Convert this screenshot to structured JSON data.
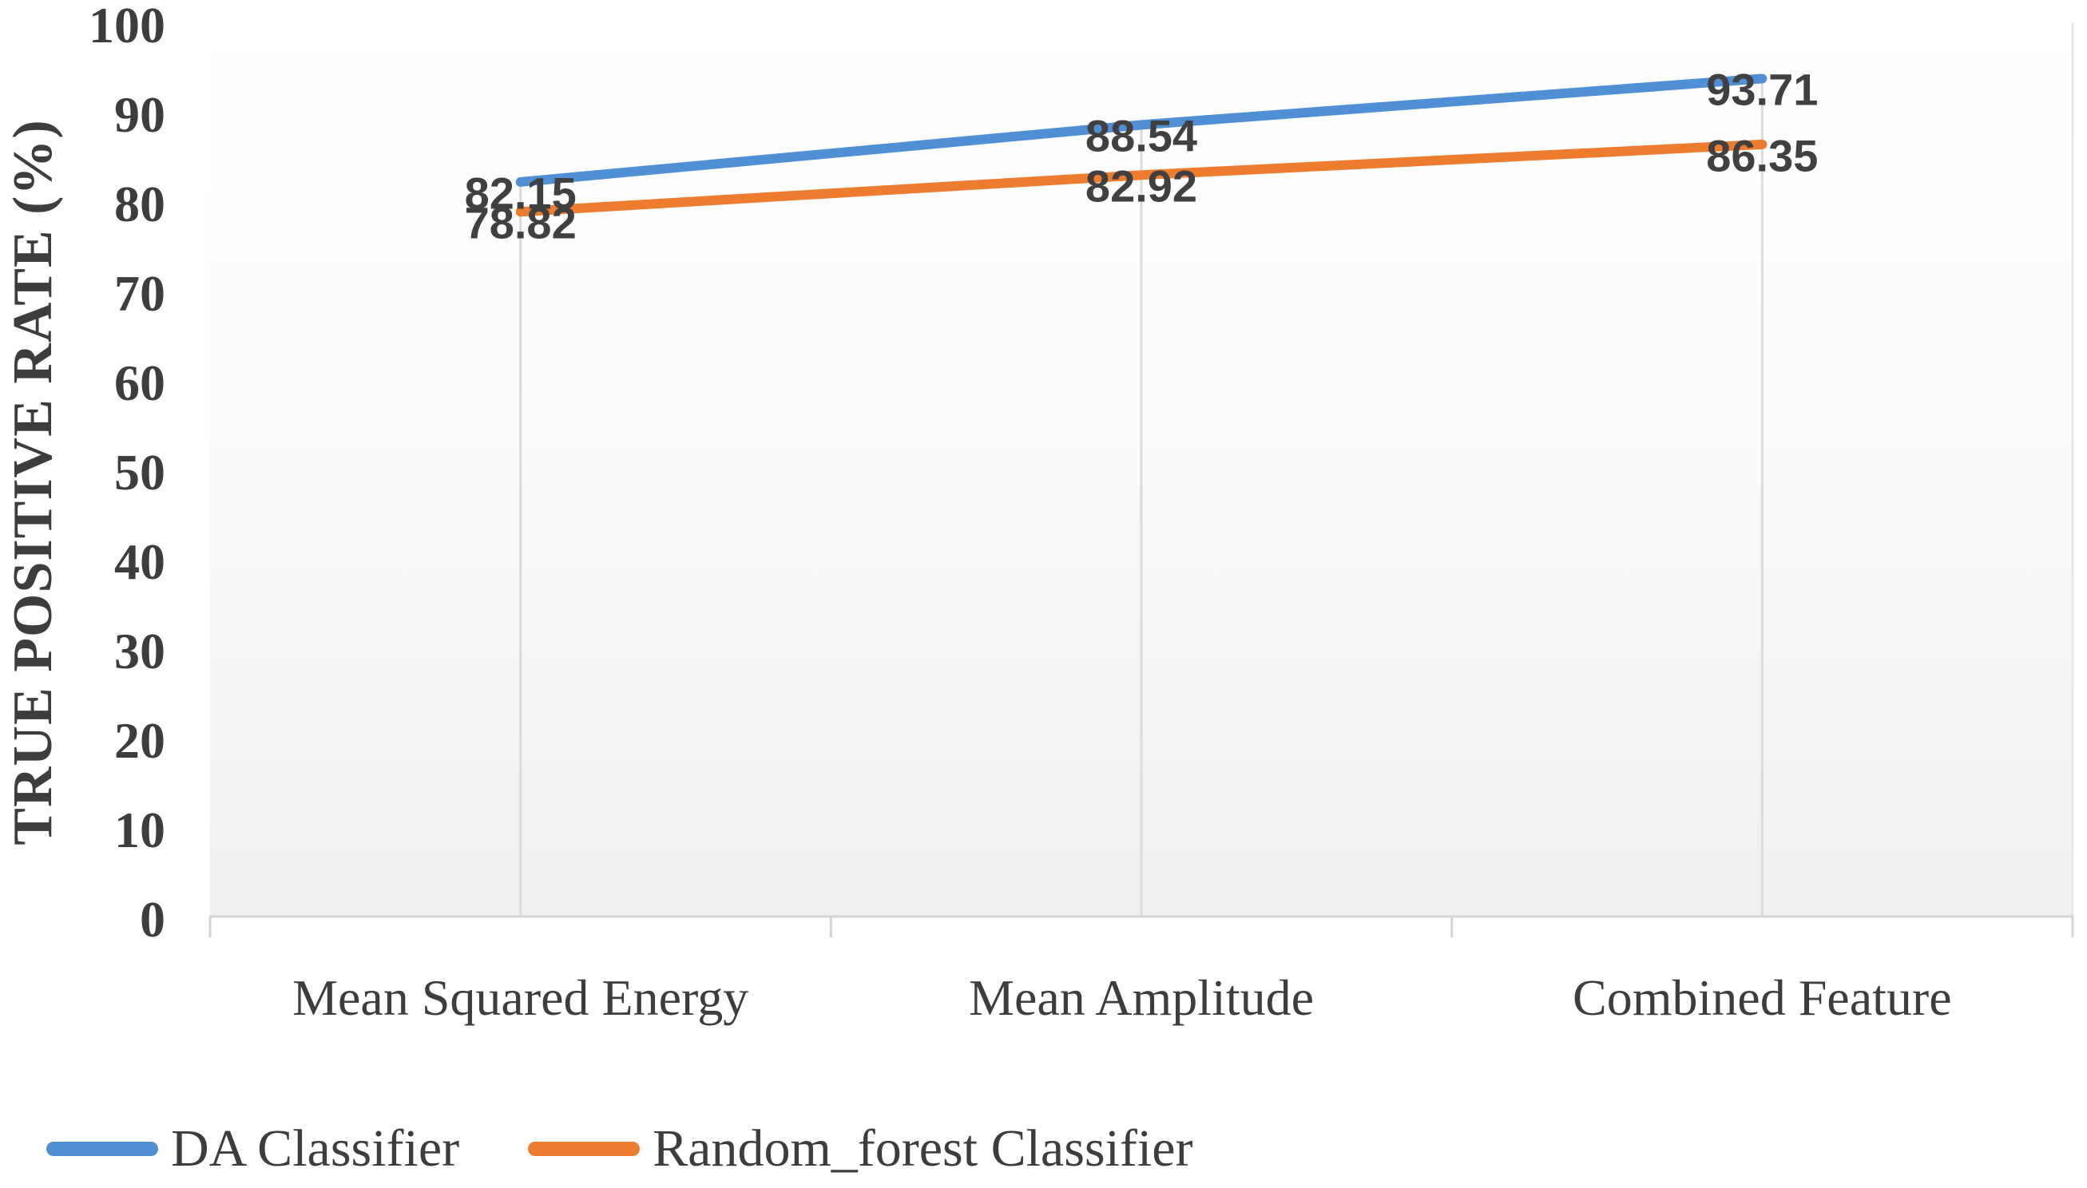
{
  "chart_data": {
    "type": "line",
    "title": "",
    "categories": [
      "Mean Squared Energy",
      "Mean Amplitude",
      "Combined Feature"
    ],
    "series": [
      {
        "name": "DA Classifier",
        "color": "#4E90D3",
        "values": [
          82.15,
          88.54,
          93.71
        ],
        "labels": [
          "82.15",
          "88.54",
          "93.71"
        ]
      },
      {
        "name": "Random_forest Classifier",
        "color": "#ED7C2F",
        "values": [
          78.82,
          82.92,
          86.35
        ],
        "labels": [
          "78.82",
          "82.92",
          "86.35"
        ]
      }
    ],
    "xlabel": "",
    "ylabel": "TRUE POSITIVE RATE (%)",
    "ylim": [
      0,
      100
    ],
    "yticks": [
      0,
      10,
      20,
      30,
      40,
      50,
      60,
      70,
      80,
      90,
      100
    ],
    "grid": {
      "horizontal": false,
      "vertical_drop_lines_at_points": true
    },
    "legend_position": "bottom-left",
    "data_labels_visible": true
  },
  "style_colors": {
    "axis_line": "#d4d4d4",
    "plot_right_border": "#e4e4e4",
    "drop_line": "#dbdbdb",
    "tick_text": "#3d3d3d",
    "data_label_text": "#404040",
    "plot_bg_top": "#ffffff",
    "plot_bg_bottom": "#efefef"
  }
}
